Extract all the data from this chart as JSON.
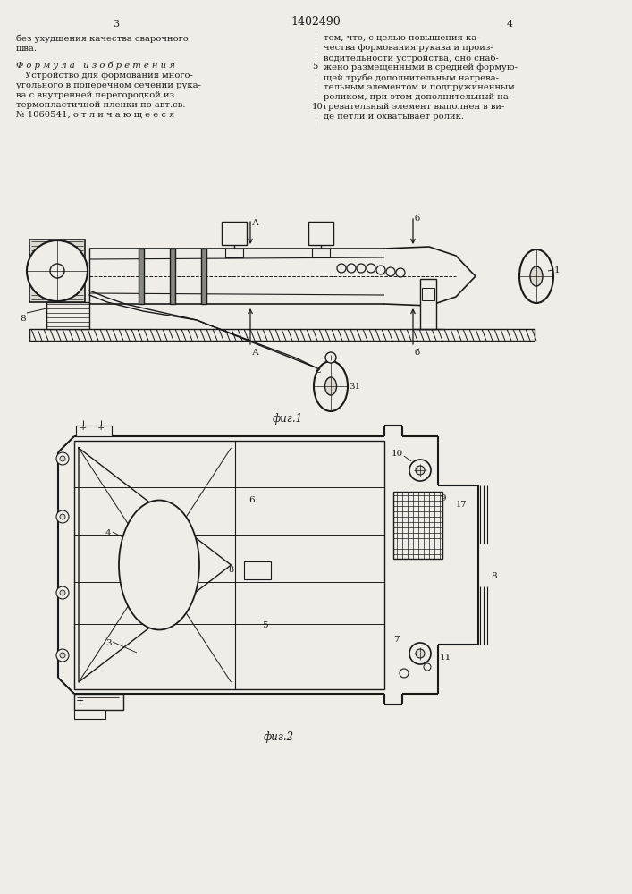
{
  "page_width": 7.07,
  "page_height": 10.0,
  "bg_color": "#f0ede8",
  "line_color": "#1a1a1a",
  "text_color": "#1a1a1a",
  "patent_number": "1402490",
  "page_numbers": [
    "3",
    "4"
  ],
  "fig1_label": "фиг.1",
  "fig2_label": "фиг.2"
}
